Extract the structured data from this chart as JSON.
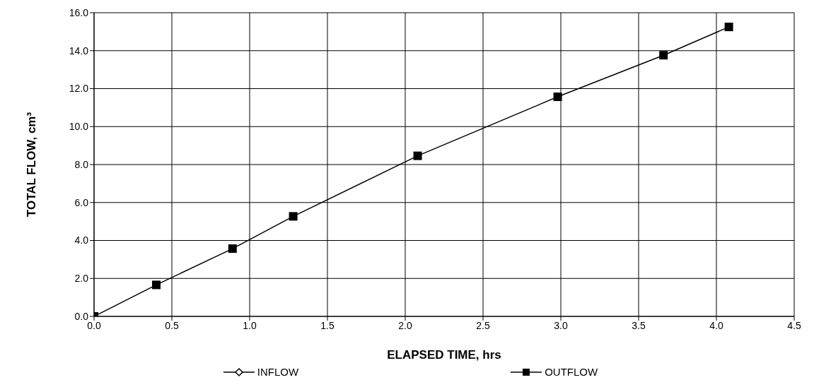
{
  "chart_data": {
    "type": "line",
    "xlabel": "ELAPSED TIME, hrs",
    "ylabel": "TOTAL FLOW, cm³",
    "xlim": [
      0,
      4.5
    ],
    "xticks": [
      {
        "value": 0,
        "label": "0.0"
      },
      {
        "value": 0.5,
        "label": "0.5"
      },
      {
        "value": 1,
        "label": "1.0"
      },
      {
        "value": 1.5,
        "label": "1.5"
      },
      {
        "value": 2,
        "label": "2.0"
      },
      {
        "value": 2.5,
        "label": "2.5"
      },
      {
        "value": 3,
        "label": "3.0"
      },
      {
        "value": 3.5,
        "label": "3.5"
      },
      {
        "value": 4,
        "label": "4.0"
      },
      {
        "value": 4.5,
        "label": "4.5"
      }
    ],
    "ylim": [
      0,
      16
    ],
    "yticks": [
      {
        "value": 0,
        "label": "0.0"
      },
      {
        "value": 2,
        "label": "2.0"
      },
      {
        "value": 4,
        "label": "4.0"
      },
      {
        "value": 6,
        "label": "6.0"
      },
      {
        "value": 8,
        "label": "8.0"
      },
      {
        "value": 10,
        "label": "10.0"
      },
      {
        "value": 12,
        "label": "12.0"
      },
      {
        "value": 14,
        "label": "14.0"
      },
      {
        "value": 16,
        "label": "16.0"
      }
    ],
    "grid": true,
    "legend": "bottom",
    "x": [
      0,
      0.4,
      0.89,
      1.28,
      2.08,
      2.98,
      3.66,
      4.08
    ],
    "series": [
      {
        "name": "OUTFLOW",
        "color": "#000000",
        "marker": "square",
        "values": [
          0,
          1.66,
          3.57,
          5.27,
          8.46,
          11.57,
          13.76,
          15.25
        ]
      },
      {
        "name": "INFLOW",
        "color": "#000000",
        "marker": "diamond",
        "values": [
          null,
          null,
          null,
          null,
          null,
          null,
          null,
          null
        ]
      }
    ]
  }
}
